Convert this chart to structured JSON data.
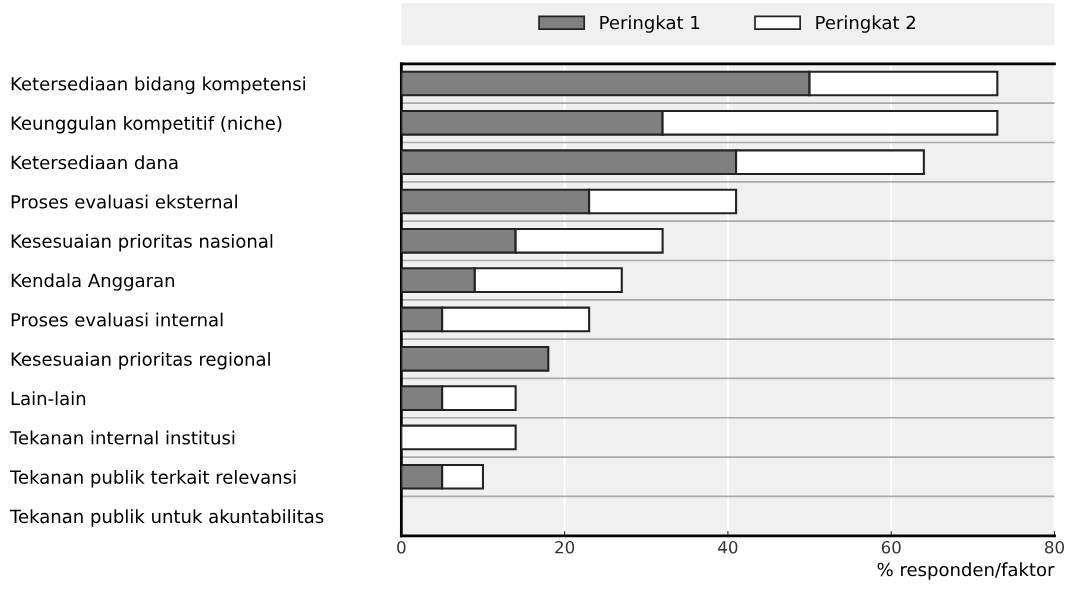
{
  "chart_data": {
    "type": "bar",
    "orientation": "horizontal",
    "stacked": true,
    "categories": [
      "Ketersediaan bidang kompetensi",
      "Keunggulan kompetitif (niche)",
      "Ketersediaan dana",
      "Proses evaluasi eksternal",
      "Kesesuaian prioritas nasional",
      "Kendala Anggaran",
      "Proses evaluasi internal",
      "Kesesuaian prioritas regional",
      "Lain-lain",
      "Tekanan internal institusi",
      "Tekanan publik terkait relevansi",
      "Tekanan publik untuk akuntabilitas"
    ],
    "series": [
      {
        "name": "Peringkat 1",
        "color": "#808080",
        "values": [
          50,
          32,
          41,
          23,
          14,
          9,
          5,
          18,
          5,
          0,
          5,
          0
        ]
      },
      {
        "name": "Peringkat 2",
        "color": "#ffffff",
        "values": [
          23,
          41,
          23,
          18,
          18,
          18,
          18,
          0,
          9,
          14,
          5,
          0
        ]
      }
    ],
    "xlim": [
      0,
      80
    ],
    "xticks": [
      0,
      20,
      40,
      60,
      80
    ],
    "xlabel": "% responden/faktor",
    "grid": true,
    "legend": "top"
  }
}
